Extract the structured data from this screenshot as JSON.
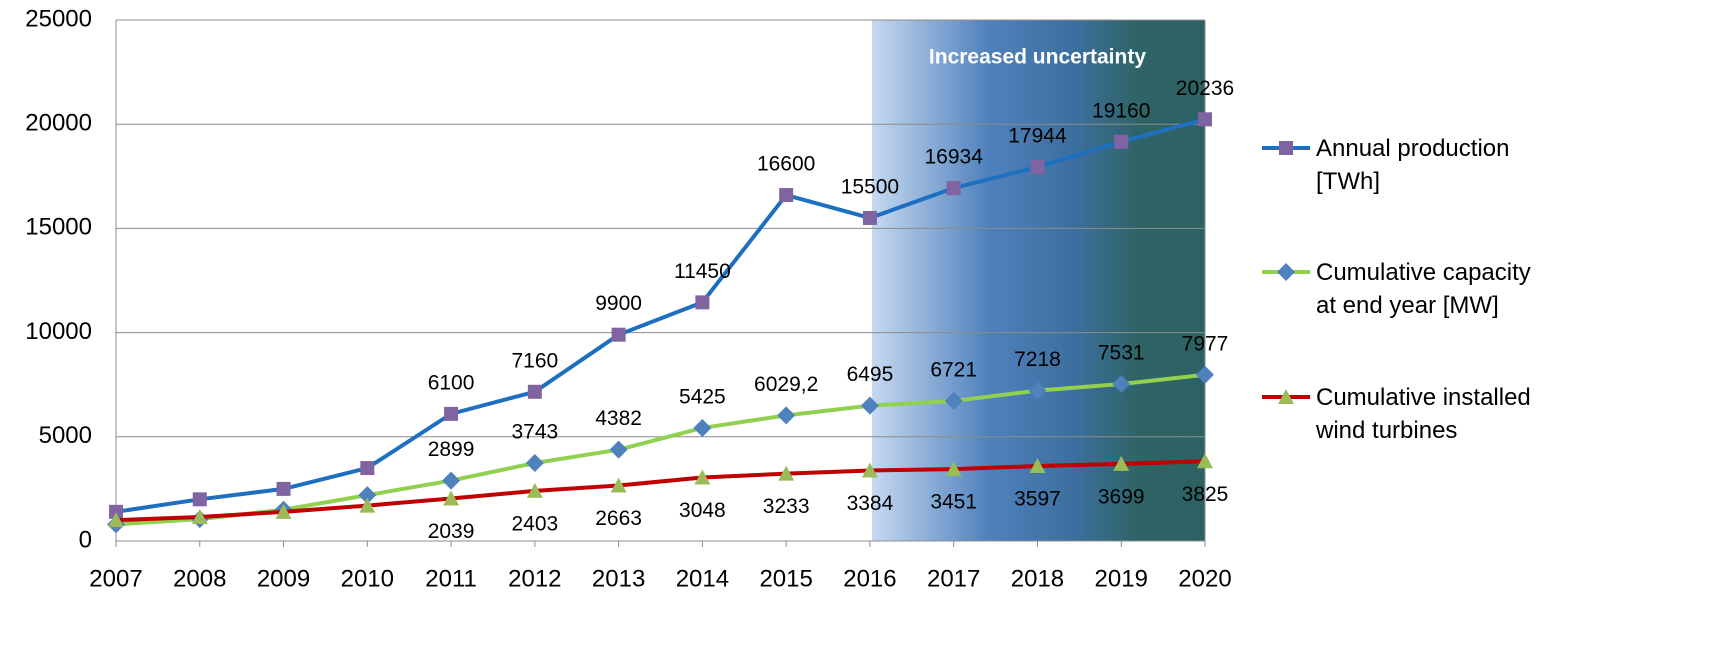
{
  "chart_data": {
    "type": "line",
    "categories": [
      "2007",
      "2008",
      "2009",
      "2010",
      "2011",
      "2012",
      "2013",
      "2014",
      "2015",
      "2016",
      "2017",
      "2018",
      "2019",
      "2020"
    ],
    "series": [
      {
        "name": "Annual production [TWh]",
        "color": "#1f6fc1",
        "marker": "square",
        "marker_color": "#8064a2",
        "label_position": "above",
        "values": [
          1400,
          2000,
          2500,
          3500,
          6100,
          7160,
          9900,
          11450,
          16600,
          15500,
          16934,
          17944,
          19160,
          20236
        ],
        "value_labels": [
          null,
          null,
          null,
          null,
          "6100",
          "7160",
          "9900",
          "11450",
          "16600",
          "15500",
          "16934",
          "17944",
          "19160",
          "20236"
        ]
      },
      {
        "name": "Cumulative capacity at end year [MW]",
        "color": "#92d050",
        "marker": "diamond",
        "marker_color": "#4f81bd",
        "label_position": "above",
        "values": [
          800,
          1050,
          1500,
          2200,
          2899,
          3743,
          4382,
          5425,
          6029.2,
          6495,
          6721,
          7218,
          7531,
          7977
        ],
        "value_labels": [
          null,
          null,
          null,
          null,
          "2899",
          "3743",
          "4382",
          "5425",
          "6029,2",
          "6495",
          "6721",
          "7218",
          "7531",
          "7977"
        ]
      },
      {
        "name": "Cumulative installed wind turbines",
        "color": "#c00000",
        "marker": "triangle",
        "marker_color": "#9bbb59",
        "label_position": "below",
        "values": [
          1000,
          1150,
          1400,
          1700,
          2039,
          2403,
          2663,
          3048,
          3233,
          3384,
          3451,
          3597,
          3699,
          3825
        ],
        "value_labels": [
          null,
          null,
          null,
          null,
          "2039",
          "2403",
          "2663",
          "3048",
          "3233",
          "3384",
          "3451",
          "3597",
          "3699",
          "3825"
        ]
      }
    ],
    "ylim": [
      0,
      25000
    ],
    "yticks": [
      0,
      5000,
      10000,
      15000,
      20000,
      25000
    ],
    "grid": true,
    "legend": "right",
    "shaded_region": {
      "from": "2016",
      "to": "2020",
      "label": "Increased uncertainty"
    }
  }
}
